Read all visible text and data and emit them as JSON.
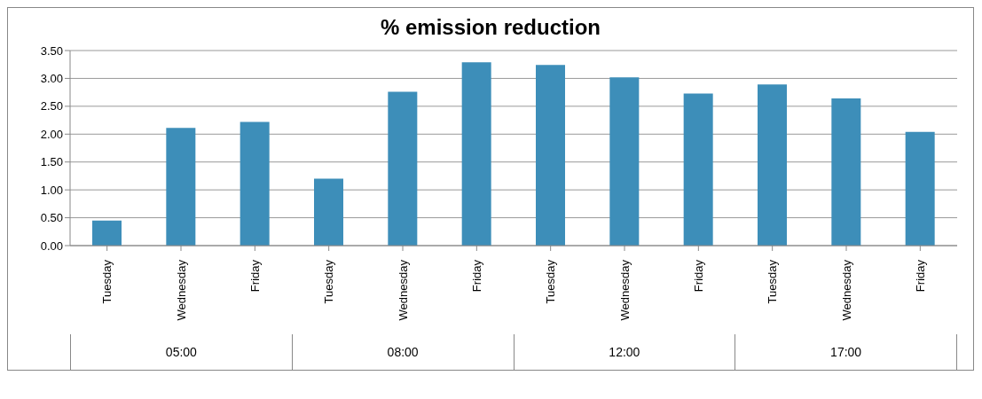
{
  "chart_data": {
    "type": "bar",
    "title": "% emission reduction",
    "categories": [
      "Tuesday",
      "Wednesday",
      "Friday",
      "Tuesday",
      "Wednesday",
      "Friday",
      "Tuesday",
      "Wednesday",
      "Friday",
      "Tuesday",
      "Wednesday",
      "Friday"
    ],
    "values": [
      0.45,
      2.11,
      2.22,
      1.2,
      2.76,
      3.29,
      3.24,
      3.02,
      2.73,
      2.89,
      2.64,
      2.04
    ],
    "color": "#3d8eb9",
    "ylim": [
      0,
      3.5
    ],
    "yticks": [
      {
        "value": 0,
        "label": "0.00"
      },
      {
        "value": 0.5,
        "label": "0.50"
      },
      {
        "value": 1,
        "label": "1.00"
      },
      {
        "value": 1.5,
        "label": "1.50"
      },
      {
        "value": 2,
        "label": "2.00"
      },
      {
        "value": 2.5,
        "label": "2.50"
      },
      {
        "value": 3,
        "label": "3.00"
      },
      {
        "value": 3.5,
        "label": "3.50"
      }
    ],
    "grid": "y",
    "annotations": [
      "05:00",
      "08:00",
      "12:00",
      "17:00"
    ]
  }
}
